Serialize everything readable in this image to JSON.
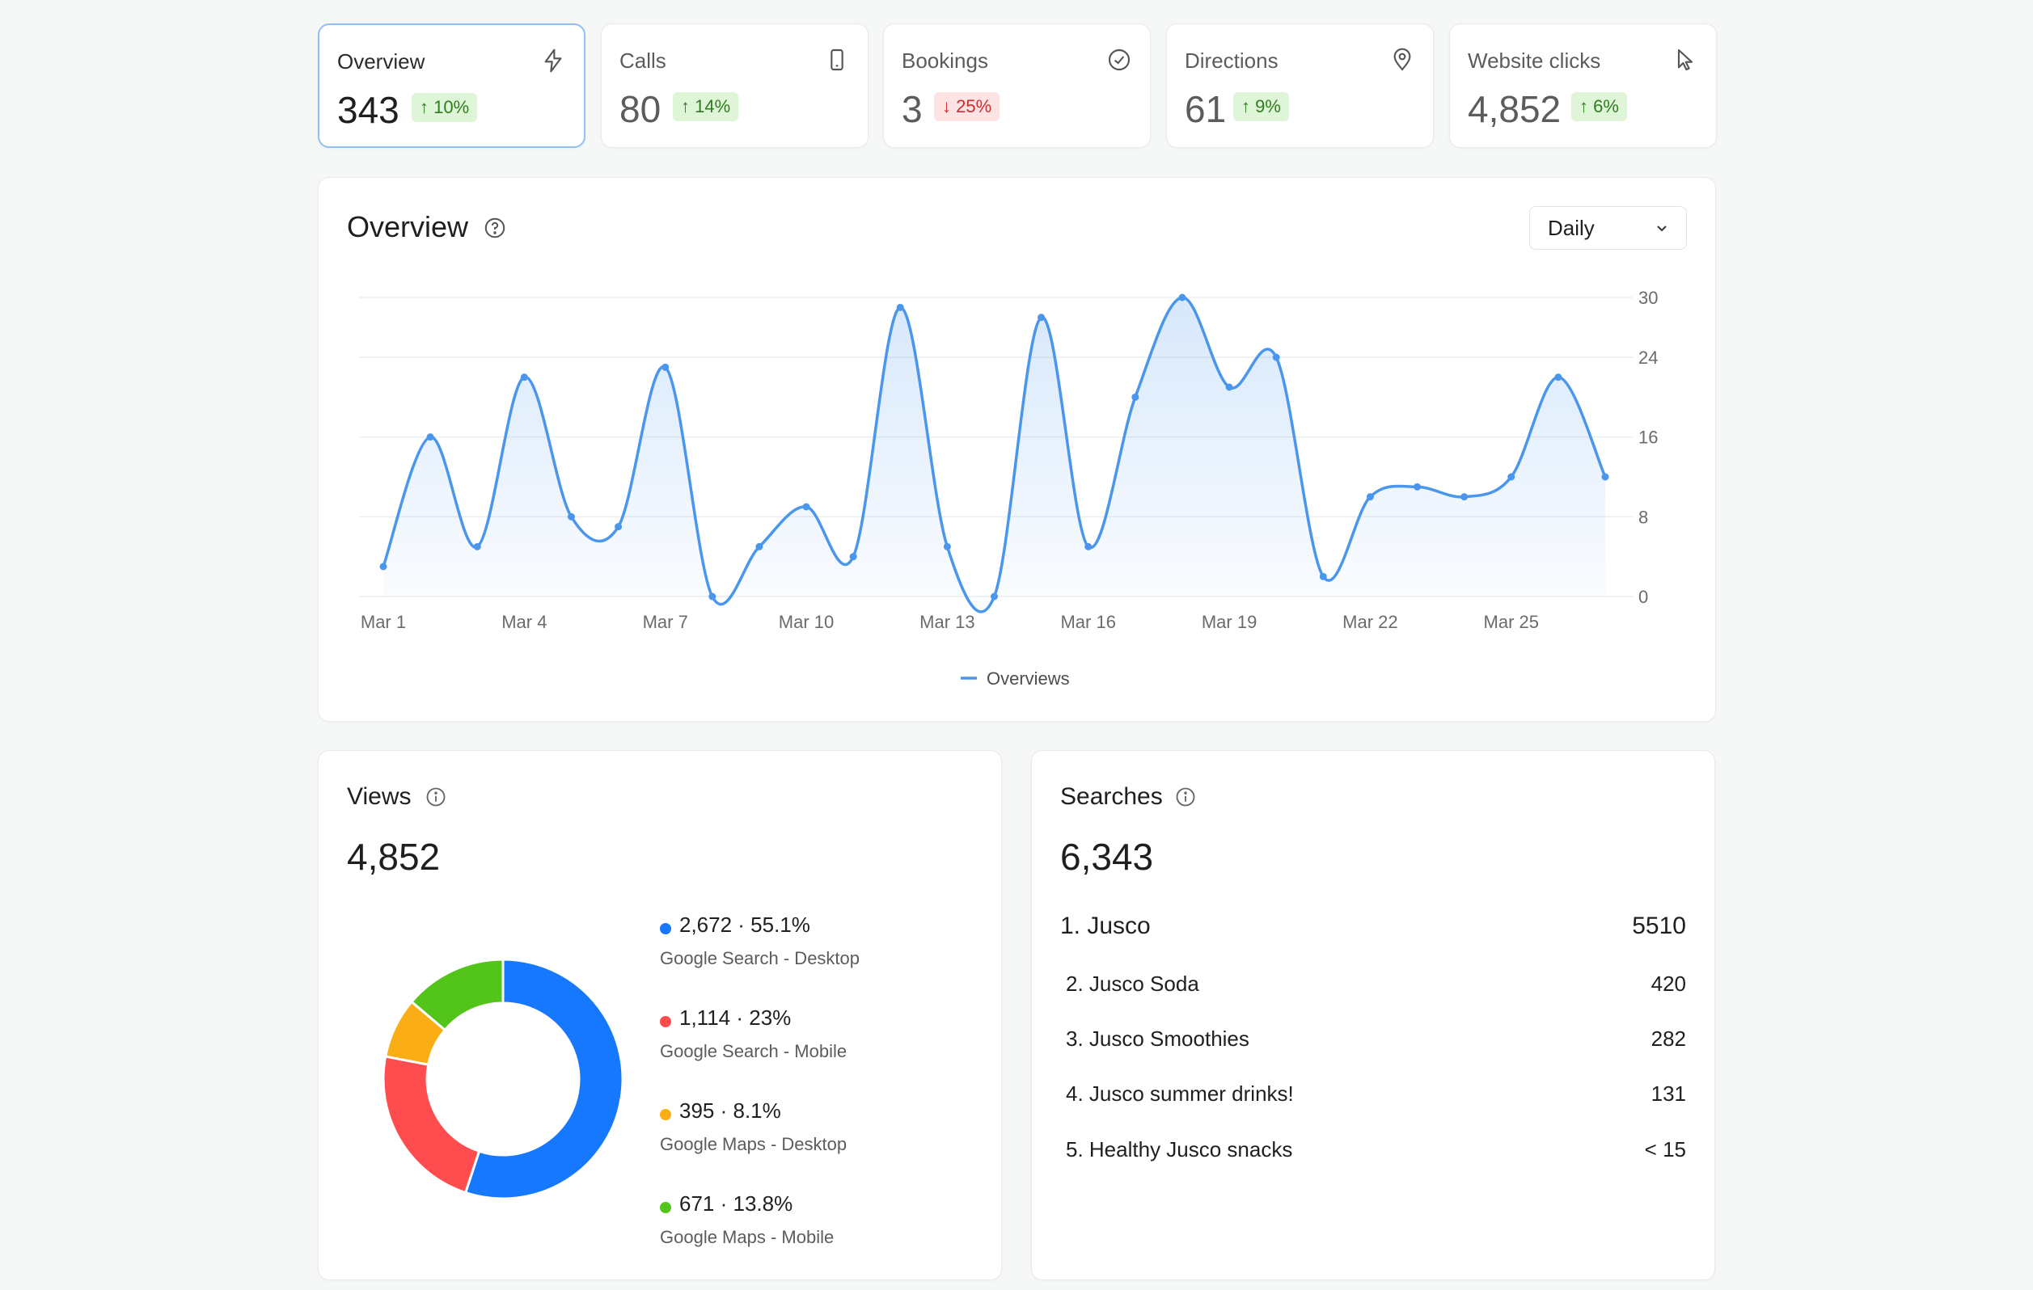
{
  "stats": [
    {
      "label": "Overview",
      "value": "343",
      "delta": "↑ 10%",
      "trend": "up",
      "icon": "lightning-icon"
    },
    {
      "label": "Calls",
      "value": "80",
      "delta": "↑ 14%",
      "trend": "up",
      "icon": "phone-icon"
    },
    {
      "label": "Bookings",
      "value": "3",
      "delta": "↓ 25%",
      "trend": "down",
      "icon": "check-circle-icon"
    },
    {
      "label": "Directions",
      "value": "61",
      "delta": "↑ 9%",
      "trend": "up",
      "icon": "map-pin-icon"
    },
    {
      "label": "Website clicks",
      "value": "4,852",
      "delta": "↑ 6%",
      "trend": "up",
      "icon": "cursor-icon"
    }
  ],
  "overview": {
    "title": "Overview",
    "period_select": "Daily"
  },
  "chart_data": {
    "type": "area",
    "x": [
      "Mar 1",
      "Mar 2",
      "Mar 3",
      "Mar 4",
      "Mar 5",
      "Mar 6",
      "Mar 7",
      "Mar 8",
      "Mar 9",
      "Mar 10",
      "Mar 11",
      "Mar 12",
      "Mar 13",
      "Mar 14",
      "Mar 15",
      "Mar 16",
      "Mar 17",
      "Mar 18",
      "Mar 19",
      "Mar 20",
      "Mar 21",
      "Mar 22",
      "Mar 23",
      "Mar 24",
      "Mar 25",
      "Mar 26",
      "Mar 27"
    ],
    "x_tick_labels": [
      "Mar 1",
      "Mar 4",
      "Mar 7",
      "Mar 10",
      "Mar 13",
      "Mar 16",
      "Mar 19",
      "Mar 22",
      "Mar 25"
    ],
    "series": [
      {
        "name": "Overviews",
        "values": [
          3,
          16,
          5,
          22,
          8,
          7,
          23,
          0,
          5,
          9,
          4,
          29,
          5,
          0,
          28,
          5,
          20,
          30,
          21,
          24,
          2,
          10,
          11,
          10,
          12,
          22,
          12
        ]
      }
    ],
    "y_ticks": [
      0,
      8,
      16,
      24,
      30
    ],
    "ylim": [
      0,
      30
    ],
    "grid": true,
    "legend": "bottom-center",
    "color": "#4a96ec"
  },
  "views": {
    "title": "Views",
    "total": "4,852",
    "chart_data": {
      "type": "pie",
      "slices": [
        {
          "value": 2672,
          "pct": "55.1%",
          "label_value": "2,672 · 55.1%",
          "source": "Google Search - Desktop",
          "color": "#1677ff"
        },
        {
          "value": 1114,
          "pct": "23%",
          "label_value": "1,114 · 23%",
          "source": "Google Search - Mobile",
          "color": "#ff4d4f"
        },
        {
          "value": 395,
          "pct": "8.1%",
          "label_value": "395 · 8.1%",
          "source": "Google Maps - Desktop",
          "color": "#faad14"
        },
        {
          "value": 671,
          "pct": "13.8%",
          "label_value": "671 · 13.8%",
          "source": "Google Maps - Mobile",
          "color": "#52c41a"
        }
      ]
    }
  },
  "searches": {
    "title": "Searches",
    "total": "6,343",
    "items": [
      {
        "name": "1. Jusco",
        "count": "5510"
      },
      {
        "name": "2. Jusco Soda",
        "count": "420"
      },
      {
        "name": "3. Jusco Smoothies",
        "count": "282"
      },
      {
        "name": "4. Jusco summer drinks!",
        "count": "131"
      },
      {
        "name": "5. Healthy Jusco snacks",
        "count": "< 15"
      }
    ]
  }
}
